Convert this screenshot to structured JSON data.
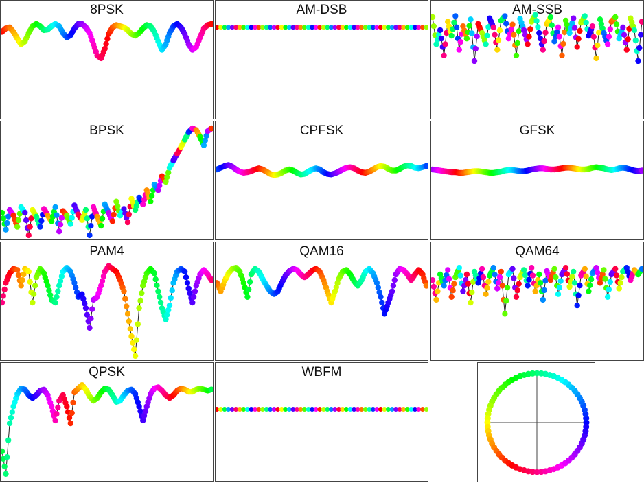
{
  "chart_data": [
    {
      "type": "scatter",
      "title": "8PSK",
      "style": "wave",
      "ylim": [
        -1,
        1
      ],
      "y": [
        0.52,
        0.58,
        0.6,
        0.52,
        0.4,
        0.3,
        0.35,
        0.5,
        0.62,
        0.66,
        0.62,
        0.55,
        0.56,
        0.62,
        0.66,
        0.62,
        0.5,
        0.42,
        0.46,
        0.58,
        0.66,
        0.66,
        0.6,
        0.5,
        0.3,
        0.1,
        0.05,
        0.22,
        0.48,
        0.6,
        0.64,
        0.62,
        0.6,
        0.55,
        0.48,
        0.45,
        0.5,
        0.58,
        0.64,
        0.62,
        0.52,
        0.35,
        0.2,
        0.3,
        0.5,
        0.62,
        0.66,
        0.6,
        0.48,
        0.3,
        0.2,
        0.25,
        0.42,
        0.58,
        0.64,
        0.66
      ]
    },
    {
      "type": "scatter",
      "title": "AM-DSB",
      "style": "flat",
      "ylim": [
        -1,
        1
      ],
      "y": [
        0.6,
        0.6,
        0.6,
        0.6,
        0.6,
        0.6,
        0.6,
        0.6,
        0.6,
        0.6,
        0.6,
        0.6,
        0.6,
        0.6,
        0.6,
        0.6,
        0.6,
        0.6,
        0.6,
        0.6,
        0.6,
        0.6,
        0.6,
        0.6,
        0.6,
        0.6,
        0.6,
        0.6,
        0.6,
        0.6,
        0.6,
        0.6,
        0.6,
        0.6,
        0.6,
        0.6,
        0.6,
        0.6,
        0.6,
        0.6,
        0.6,
        0.6,
        0.6,
        0.6,
        0.6,
        0.6,
        0.6,
        0.6,
        0.6,
        0.6,
        0.6,
        0.6,
        0.6,
        0.6,
        0.6,
        0.6
      ]
    },
    {
      "type": "scatter",
      "title": "AM-SSB",
      "style": "spiky",
      "ylim": [
        -1,
        1
      ],
      "y": [
        0.78,
        0.3,
        0.55,
        0.1,
        0.7,
        0.45,
        0.8,
        0.2,
        0.62,
        0.4,
        0.74,
        0.0,
        0.66,
        0.5,
        0.3,
        0.76,
        0.6,
        0.2,
        0.72,
        0.8,
        0.4,
        0.65,
        0.1,
        0.75,
        0.55,
        0.3,
        0.7,
        0.82,
        0.5,
        0.2,
        0.66,
        0.78,
        0.35,
        0.6,
        0.1,
        0.72,
        0.5,
        0.76,
        0.25,
        0.68,
        0.8,
        0.45,
        0.62,
        0.05,
        0.74,
        0.5,
        0.3,
        0.7,
        0.78,
        0.4,
        0.6,
        0.2,
        0.76,
        0.55,
        0.0,
        0.7
      ]
    },
    {
      "type": "scatter",
      "title": "BPSK",
      "style": "spiky",
      "ylim": [
        -1,
        1
      ],
      "y": [
        -0.55,
        -0.85,
        -0.5,
        -0.6,
        -0.8,
        -0.45,
        -0.55,
        -0.95,
        -0.5,
        -0.62,
        -0.8,
        -0.48,
        -0.6,
        -0.7,
        -0.45,
        -0.88,
        -0.52,
        -0.6,
        -0.75,
        -0.42,
        -0.58,
        -0.68,
        -0.5,
        -0.95,
        -0.45,
        -0.62,
        -0.78,
        -0.4,
        -0.55,
        -0.7,
        -0.35,
        -0.6,
        -0.48,
        -0.72,
        -0.3,
        -0.5,
        -0.28,
        -0.4,
        -0.15,
        -0.35,
        -0.05,
        -0.15,
        0.1,
        0.0,
        0.25,
        0.38,
        0.5,
        0.62,
        0.75,
        0.88,
        0.95,
        0.92,
        0.8,
        0.65,
        0.9,
        0.95
      ]
    },
    {
      "type": "scatter",
      "title": "CPFSK",
      "style": "wave",
      "ylim": [
        -1,
        1
      ],
      "y": [
        0.22,
        0.25,
        0.28,
        0.3,
        0.27,
        0.22,
        0.18,
        0.16,
        0.17,
        0.19,
        0.22,
        0.24,
        0.22,
        0.18,
        0.14,
        0.12,
        0.13,
        0.16,
        0.2,
        0.22,
        0.2,
        0.16,
        0.13,
        0.14,
        0.18,
        0.22,
        0.24,
        0.22,
        0.17,
        0.14,
        0.13,
        0.15,
        0.18,
        0.22,
        0.25,
        0.26,
        0.24,
        0.2,
        0.17,
        0.16,
        0.18,
        0.22,
        0.26,
        0.28,
        0.27,
        0.23,
        0.2,
        0.2,
        0.23,
        0.27,
        0.29,
        0.28,
        0.25,
        0.24,
        0.26,
        0.28
      ]
    },
    {
      "type": "scatter",
      "title": "GFSK",
      "style": "wave",
      "ylim": [
        -1,
        1
      ],
      "y": [
        0.22,
        0.21,
        0.2,
        0.19,
        0.18,
        0.17,
        0.17,
        0.16,
        0.16,
        0.17,
        0.18,
        0.19,
        0.19,
        0.18,
        0.17,
        0.16,
        0.16,
        0.17,
        0.18,
        0.2,
        0.21,
        0.21,
        0.2,
        0.19,
        0.19,
        0.2,
        0.22,
        0.23,
        0.24,
        0.24,
        0.23,
        0.22,
        0.22,
        0.23,
        0.24,
        0.25,
        0.25,
        0.24,
        0.23,
        0.22,
        0.22,
        0.23,
        0.25,
        0.26,
        0.25,
        0.24,
        0.22,
        0.21,
        0.22,
        0.24,
        0.25,
        0.24,
        0.22,
        0.2,
        0.19,
        0.2
      ]
    },
    {
      "type": "scatter",
      "title": "PAM4",
      "style": "wave",
      "ylim": [
        -1,
        1
      ],
      "y": [
        0.0,
        0.35,
        0.52,
        0.6,
        0.58,
        0.3,
        0.6,
        0.55,
        0.0,
        0.45,
        0.6,
        0.52,
        0.3,
        0.05,
        0.0,
        0.3,
        0.55,
        0.62,
        0.55,
        0.35,
        0.1,
        0.15,
        -0.1,
        -0.45,
        0.05,
        0.1,
        0.3,
        0.55,
        0.65,
        0.6,
        0.55,
        0.4,
        0.2,
        -0.2,
        -0.6,
        -0.95,
        -0.1,
        0.3,
        0.52,
        0.6,
        0.52,
        0.2,
        -0.1,
        -0.3,
        -0.05,
        0.35,
        0.55,
        0.6,
        0.55,
        0.25,
        0.0,
        0.3,
        0.5,
        0.58,
        0.5,
        0.4
      ]
    },
    {
      "type": "scatter",
      "title": "QAM16",
      "style": "wave",
      "ylim": [
        -1,
        1
      ],
      "y": [
        0.35,
        0.2,
        0.38,
        0.52,
        0.6,
        0.62,
        0.55,
        0.35,
        0.1,
        0.5,
        0.6,
        0.55,
        0.42,
        0.3,
        0.2,
        0.15,
        0.2,
        0.35,
        0.48,
        0.56,
        0.6,
        0.58,
        0.5,
        0.45,
        0.5,
        0.57,
        0.6,
        0.55,
        0.4,
        0.2,
        0.0,
        0.2,
        0.42,
        0.55,
        0.58,
        0.5,
        0.38,
        0.3,
        0.4,
        0.55,
        0.6,
        0.52,
        0.35,
        0.1,
        -0.2,
        0.0,
        0.2,
        0.5,
        0.6,
        0.58,
        0.5,
        0.4,
        0.5,
        0.58,
        0.5,
        0.3
      ]
    },
    {
      "type": "scatter",
      "title": "QAM64",
      "style": "spiky",
      "ylim": [
        -1,
        1
      ],
      "y": [
        0.4,
        0.05,
        0.5,
        0.3,
        0.58,
        0.1,
        0.45,
        0.62,
        0.2,
        0.5,
        0.0,
        0.55,
        0.35,
        0.6,
        0.15,
        0.48,
        0.62,
        0.25,
        0.55,
        -0.2,
        0.5,
        0.6,
        0.1,
        0.45,
        0.58,
        0.3,
        0.62,
        0.2,
        0.5,
        0.05,
        0.56,
        0.4,
        0.6,
        0.15,
        0.5,
        0.62,
        0.28,
        0.55,
        -0.05,
        0.48,
        0.6,
        0.2,
        0.52,
        0.62,
        0.35,
        0.58,
        0.1,
        0.5,
        0.6,
        0.25,
        0.55,
        0.62,
        0.4,
        0.58,
        0.5,
        0.6
      ]
    },
    {
      "type": "scatter",
      "title": "QPSK",
      "style": "wave",
      "ylim": [
        -1,
        1
      ],
      "y": [
        -0.5,
        -0.9,
        0.0,
        0.3,
        0.52,
        0.62,
        0.6,
        0.5,
        0.45,
        0.5,
        0.58,
        0.6,
        0.5,
        0.3,
        0.05,
        0.4,
        0.5,
        0.3,
        0.0,
        0.55,
        0.62,
        0.68,
        0.6,
        0.48,
        0.4,
        0.45,
        0.55,
        0.62,
        0.6,
        0.5,
        0.38,
        0.4,
        0.5,
        0.58,
        0.6,
        0.52,
        0.3,
        0.05,
        0.3,
        0.52,
        0.62,
        0.64,
        0.58,
        0.5,
        0.45,
        0.5,
        0.58,
        0.62,
        0.6,
        0.56,
        0.56,
        0.6,
        0.62,
        0.6,
        0.58,
        0.6
      ]
    },
    {
      "type": "scatter",
      "title": "WBFM",
      "style": "flat",
      "ylim": [
        -1,
        1
      ],
      "y": [
        0.25,
        0.25,
        0.25,
        0.25,
        0.25,
        0.25,
        0.25,
        0.25,
        0.25,
        0.25,
        0.25,
        0.25,
        0.25,
        0.25,
        0.25,
        0.25,
        0.25,
        0.25,
        0.25,
        0.25,
        0.25,
        0.25,
        0.25,
        0.25,
        0.25,
        0.25,
        0.25,
        0.25,
        0.25,
        0.25,
        0.25,
        0.25,
        0.25,
        0.25,
        0.25,
        0.25,
        0.25,
        0.25,
        0.25,
        0.25,
        0.25,
        0.25,
        0.25,
        0.25,
        0.25,
        0.25,
        0.25,
        0.25,
        0.25,
        0.25,
        0.25,
        0.25,
        0.25,
        0.25,
        0.25,
        0.25
      ]
    }
  ],
  "legend_wheel": {
    "type": "phase-color-wheel",
    "axes": "crosshair"
  }
}
